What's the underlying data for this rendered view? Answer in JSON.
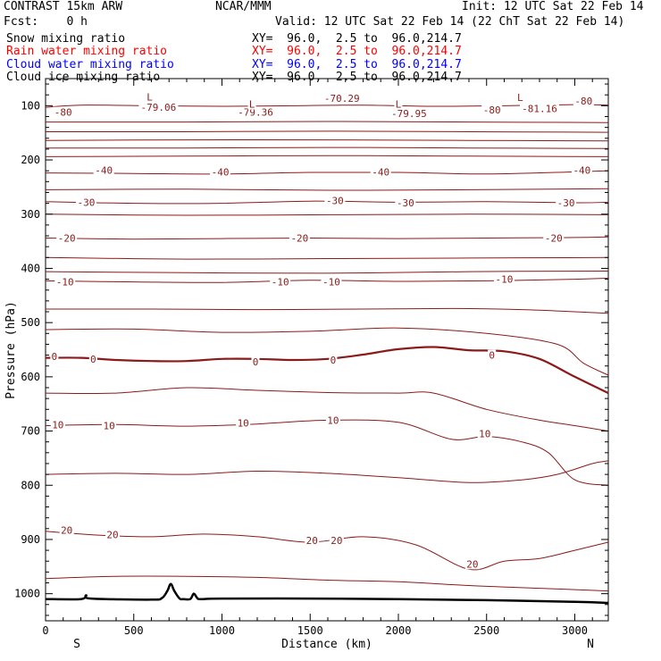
{
  "header": {
    "title": "CONTRAST 15km ARW",
    "center": "NCAR/MMM",
    "init": "Init: 12 UTC Sat 22 Feb 14",
    "fcst": "Fcst:    0 h",
    "valid": "Valid: 12 UTC Sat 22 Feb 14 (22 ChT Sat 22 Feb 14)",
    "fields": [
      {
        "name": "Snow mixing ratio",
        "xy": "XY=  96.0,  2.5 to  96.0,214.7",
        "color": "#000000"
      },
      {
        "name": "Rain water mixing ratio",
        "xy": "XY=  96.0,  2.5 to  96.0,214.7",
        "color": "#ff0000"
      },
      {
        "name": "Cloud water mixing ratio",
        "xy": "XY=  96.0,  2.5 to  96.0,214.7",
        "color": "#0000ff"
      },
      {
        "name": "Cloud ice mixing ratio",
        "xy": "XY=  96.0,  2.5 to  96.0,214.7",
        "color": "#000000"
      }
    ]
  },
  "chart_data": {
    "type": "line",
    "xlabel": "Distance (km)",
    "ylabel": "Pressure (hPa)",
    "x_ticks": [
      0,
      500,
      1000,
      1500,
      2000,
      2500,
      3000
    ],
    "y_ticks": [
      100,
      200,
      300,
      400,
      500,
      600,
      700,
      800,
      900,
      1000
    ],
    "xlim": [
      0,
      3190
    ],
    "ylim": [
      1050,
      50
    ],
    "x_end_labels": {
      "left": "S",
      "right": "N"
    },
    "contour_color": "#8b1a1a",
    "terrain_color": "#000000",
    "contours": [
      {
        "level": -80,
        "x": [
          0,
          200,
          600,
          1000,
          1400,
          1800,
          2200,
          2600,
          3000,
          3190
        ],
        "p": [
          103,
          99,
          100,
          101,
          100,
          99,
          101,
          100,
          98,
          99
        ]
      },
      {
        "level": null,
        "x": [
          0,
          800,
          1600,
          2400,
          3190
        ],
        "p": [
          130,
          130,
          129,
          130,
          131
        ]
      },
      {
        "level": null,
        "x": [
          0,
          800,
          1600,
          2400,
          3190
        ],
        "p": [
          148,
          148,
          147,
          148,
          149
        ]
      },
      {
        "level": null,
        "x": [
          0,
          800,
          1600,
          2400,
          3190
        ],
        "p": [
          164,
          163,
          163,
          164,
          165
        ]
      },
      {
        "level": null,
        "x": [
          0,
          800,
          1600,
          2400,
          3190
        ],
        "p": [
          178,
          178,
          177,
          178,
          179
        ]
      },
      {
        "level": null,
        "x": [
          0,
          800,
          1600,
          2400,
          3190
        ],
        "p": [
          194,
          193,
          192,
          193,
          194
        ]
      },
      {
        "level": -40,
        "x": [
          0,
          500,
          1000,
          1500,
          2000,
          2500,
          3000,
          3190
        ],
        "p": [
          224,
          225,
          226,
          223,
          223,
          226,
          222,
          220
        ]
      },
      {
        "level": null,
        "x": [
          0,
          800,
          1600,
          2400,
          3190
        ],
        "p": [
          255,
          254,
          256,
          255,
          253
        ]
      },
      {
        "level": -30,
        "x": [
          0,
          500,
          1000,
          1500,
          2000,
          2500,
          3000,
          3190
        ],
        "p": [
          277,
          280,
          280,
          276,
          278,
          277,
          279,
          278
        ]
      },
      {
        "level": null,
        "x": [
          0,
          800,
          1600,
          2400,
          3190
        ],
        "p": [
          300,
          302,
          301,
          300,
          301
        ]
      },
      {
        "level": -20,
        "x": [
          0,
          500,
          1000,
          1500,
          2000,
          2500,
          3000,
          3190
        ],
        "p": [
          344,
          346,
          345,
          344,
          345,
          344,
          343,
          342
        ]
      },
      {
        "level": null,
        "x": [
          0,
          800,
          1600,
          2400,
          3190
        ],
        "p": [
          380,
          383,
          382,
          381,
          380
        ]
      },
      {
        "level": null,
        "x": [
          0,
          800,
          1600,
          2400,
          3190
        ],
        "p": [
          406,
          408,
          409,
          406,
          405
        ]
      },
      {
        "level": -10,
        "x": [
          0,
          500,
          1000,
          1500,
          2000,
          2500,
          3000,
          3190
        ],
        "p": [
          423,
          425,
          426,
          422,
          424,
          423,
          420,
          418
        ]
      },
      {
        "level": null,
        "x": [
          0,
          600,
          1200,
          1800,
          2300,
          2700,
          3000,
          3190
        ],
        "p": [
          475,
          475,
          476,
          475,
          474,
          476,
          480,
          483
        ]
      },
      {
        "level": null,
        "x": [
          0,
          500,
          1000,
          1500,
          2000,
          2500,
          2900,
          3050,
          3190
        ],
        "p": [
          513,
          512,
          518,
          516,
          510,
          520,
          540,
          575,
          597
        ]
      },
      {
        "level": 0,
        "x": [
          0,
          200,
          400,
          600,
          800,
          1000,
          1200,
          1400,
          1600,
          1800,
          2000,
          2200,
          2400,
          2600,
          2800,
          3000,
          3190
        ],
        "p": [
          565,
          565,
          569,
          571,
          571,
          567,
          567,
          569,
          567,
          559,
          549,
          545,
          551,
          553,
          567,
          600,
          630
        ]
      },
      {
        "level": null,
        "x": [
          0,
          400,
          800,
          1200,
          1600,
          2000,
          2200,
          2500,
          2800,
          3000,
          3190
        ],
        "p": [
          630,
          630,
          620,
          625,
          629,
          630,
          630,
          660,
          680,
          690,
          700
        ]
      },
      {
        "level": 10,
        "x": [
          0,
          400,
          800,
          1200,
          1600,
          2000,
          2300,
          2500,
          2700,
          2850,
          3000,
          3190
        ],
        "p": [
          690,
          688,
          691,
          687,
          680,
          684,
          715,
          710,
          720,
          740,
          790,
          800
        ]
      },
      {
        "level": null,
        "x": [
          0,
          400,
          800,
          1200,
          1600,
          2000,
          2400,
          2700,
          2900,
          3100,
          3190
        ],
        "p": [
          780,
          778,
          780,
          774,
          778,
          786,
          795,
          790,
          780,
          760,
          755
        ]
      },
      {
        "level": 20,
        "x": [
          0,
          300,
          600,
          900,
          1200,
          1500,
          1800,
          2100,
          2400,
          2600,
          2800,
          3000,
          3190
        ],
        "p": [
          885,
          892,
          895,
          890,
          895,
          905,
          895,
          910,
          955,
          940,
          935,
          920,
          905
        ]
      },
      {
        "level": null,
        "x": [
          0,
          400,
          800,
          1200,
          1600,
          2000,
          2400,
          2800,
          3190
        ],
        "p": [
          972,
          968,
          968,
          970,
          975,
          978,
          985,
          990,
          995
        ]
      }
    ],
    "contour_labels": [
      {
        "text": "-80",
        "x": 100,
        "p": 112
      },
      {
        "text": "-80",
        "x": 2530,
        "p": 108
      },
      {
        "text": "-80",
        "x": 3050,
        "p": 91
      },
      {
        "text": "-70.29",
        "x": 1680,
        "p": 86
      },
      {
        "text": "-79.06",
        "x": 640,
        "p": 103
      },
      {
        "text": "-79.36",
        "x": 1190,
        "p": 112
      },
      {
        "text": "-79.95",
        "x": 2060,
        "p": 114
      },
      {
        "text": "-81.16",
        "x": 2800,
        "p": 105
      },
      {
        "text": "L",
        "x": 590,
        "p": 84
      },
      {
        "text": "L",
        "x": 1170,
        "p": 97
      },
      {
        "text": "L",
        "x": 2000,
        "p": 97
      },
      {
        "text": "L",
        "x": 2690,
        "p": 85
      },
      {
        "text": "-40",
        "x": 330,
        "p": 219
      },
      {
        "text": "-40",
        "x": 990,
        "p": 222
      },
      {
        "text": "-40",
        "x": 1900,
        "p": 222
      },
      {
        "text": "-40",
        "x": 3040,
        "p": 219
      },
      {
        "text": "-30",
        "x": 230,
        "p": 278
      },
      {
        "text": "-30",
        "x": 1640,
        "p": 275
      },
      {
        "text": "-30",
        "x": 2040,
        "p": 279
      },
      {
        "text": "-30",
        "x": 2950,
        "p": 279
      },
      {
        "text": "-20",
        "x": 120,
        "p": 344
      },
      {
        "text": "-20",
        "x": 1440,
        "p": 344
      },
      {
        "text": "-20",
        "x": 2880,
        "p": 344
      },
      {
        "text": "-10",
        "x": 110,
        "p": 425
      },
      {
        "text": "-10",
        "x": 1330,
        "p": 425
      },
      {
        "text": "-10",
        "x": 1620,
        "p": 425
      },
      {
        "text": "-10",
        "x": 2600,
        "p": 420
      },
      {
        "text": "0",
        "x": 50,
        "p": 562
      },
      {
        "text": "0",
        "x": 270,
        "p": 567
      },
      {
        "text": "0",
        "x": 1190,
        "p": 572
      },
      {
        "text": "0",
        "x": 1630,
        "p": 569
      },
      {
        "text": "0",
        "x": 2530,
        "p": 560
      },
      {
        "text": "10",
        "x": 70,
        "p": 688
      },
      {
        "text": "10",
        "x": 360,
        "p": 690
      },
      {
        "text": "10",
        "x": 1120,
        "p": 685
      },
      {
        "text": "10",
        "x": 1630,
        "p": 680
      },
      {
        "text": "10",
        "x": 2490,
        "p": 705
      },
      {
        "text": "20",
        "x": 120,
        "p": 883
      },
      {
        "text": "20",
        "x": 380,
        "p": 891
      },
      {
        "text": "20",
        "x": 1510,
        "p": 902
      },
      {
        "text": "20",
        "x": 1650,
        "p": 902
      },
      {
        "text": "20",
        "x": 2420,
        "p": 945
      }
    ],
    "terrain": {
      "x": [
        0,
        200,
        230,
        260,
        600,
        660,
        690,
        710,
        730,
        760,
        780,
        820,
        840,
        860,
        880,
        1000,
        1500,
        2000,
        2500,
        3000,
        3190
      ],
      "p": [
        1010,
        1010,
        1003,
        1009,
        1011,
        1008,
        995,
        982,
        995,
        1009,
        1010,
        1010,
        1000,
        1008,
        1010,
        1009,
        1009,
        1010,
        1012,
        1015,
        1017
      ]
    }
  }
}
